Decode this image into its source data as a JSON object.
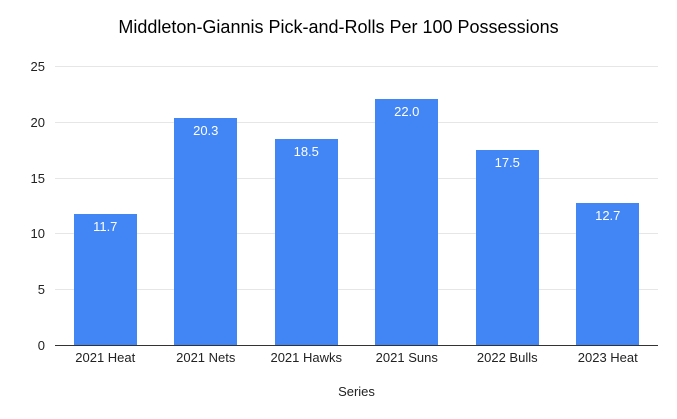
{
  "chart_data": {
    "type": "bar",
    "title": "Middleton-Giannis Pick-and-Rolls Per 100 Possessions",
    "xlabel": "Series",
    "ylabel": "",
    "categories": [
      "2021 Heat",
      "2021 Nets",
      "2021 Hawks",
      "2021 Suns",
      "2022 Bulls",
      "2023 Heat"
    ],
    "values": [
      11.7,
      20.3,
      18.5,
      22.0,
      17.5,
      12.7
    ],
    "value_labels": [
      "11.7",
      "20.3",
      "18.5",
      "22.0",
      "17.5",
      "12.7"
    ],
    "ylim": [
      0,
      25
    ],
    "yticks": [
      0,
      5,
      10,
      15,
      20,
      25
    ],
    "grid": true,
    "legend_position": "none",
    "colors": {
      "bar": "#4285f4",
      "value_label": "#ffffff",
      "gridline": "#e6e6e6",
      "axis_line": "#333333",
      "axis_text": "#222222",
      "title_text": "#000000",
      "background": "#ffffff"
    }
  }
}
